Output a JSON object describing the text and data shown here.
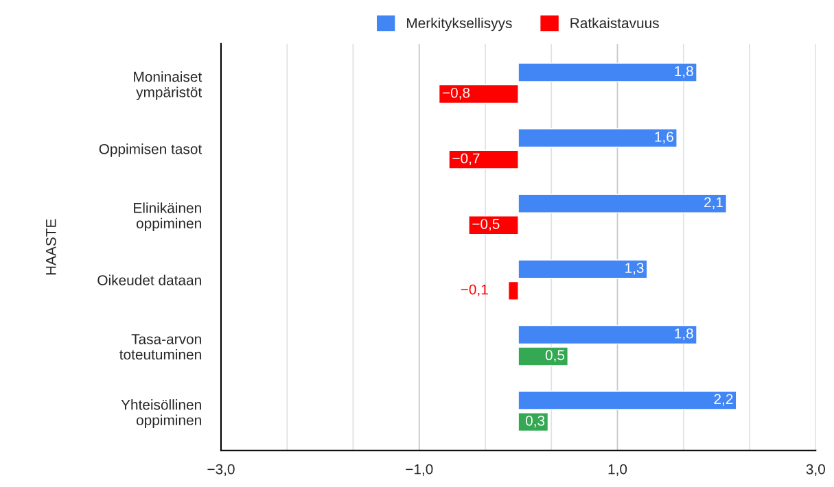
{
  "chart_data": {
    "type": "bar",
    "orientation": "horizontal",
    "ylabel": "HAASTE",
    "categories": [
      "Moninaiset\nympäristöt",
      "Oppimisen tasot",
      "Elinikäinen\noppiminen",
      "Oikeudet dataan",
      "Tasa-arvon\ntoteutuminen",
      "Yhteisöllinen\noppiminen"
    ],
    "series": [
      {
        "name": "Merkityksellisyys",
        "color": "#4285f4",
        "values": [
          1.8,
          1.6,
          2.1,
          1.3,
          1.8,
          2.2
        ],
        "value_labels": [
          "1,8",
          "1,6",
          "2,1",
          "1,3",
          "1,8",
          "2,2"
        ]
      },
      {
        "name": "Ratkaistavuus",
        "color": "#ff0000",
        "colors": [
          "#ff0000",
          "#ff0000",
          "#ff0000",
          "#ff0000",
          "#34a853",
          "#34a853"
        ],
        "values": [
          -0.8,
          -0.7,
          -0.5,
          -0.1,
          0.5,
          0.3
        ],
        "value_labels": [
          "−0,8",
          "−0,7",
          "−0,5",
          "−0,1",
          "0,5",
          "0,3"
        ]
      }
    ],
    "xlim": [
      -3,
      3
    ],
    "xticks": [
      {
        "value": -3,
        "label": "−3,0"
      },
      {
        "value": -2.333,
        "label": null
      },
      {
        "value": -1.667,
        "label": null
      },
      {
        "value": -1,
        "label": "−1,0"
      },
      {
        "value": -0.333,
        "label": null
      },
      {
        "value": 0.333,
        "label": null
      },
      {
        "value": 1,
        "label": "1,0"
      },
      {
        "value": 1.667,
        "label": null
      },
      {
        "value": 2.333,
        "label": null
      },
      {
        "value": 3,
        "label": "3,0"
      }
    ],
    "grid": "x",
    "legend": "top"
  }
}
